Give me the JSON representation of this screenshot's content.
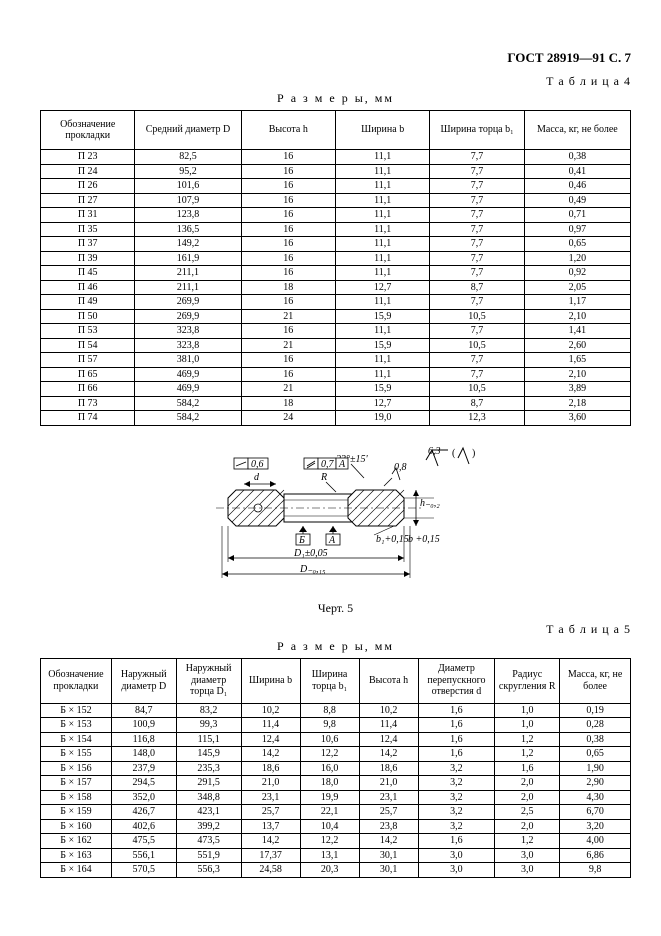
{
  "header": "ГОСТ 28919—91 С. 7",
  "table4": {
    "label": "Т а б л и ц а  4",
    "sizes_caption": "Р а з м е р ы,  мм",
    "columns": [
      "Обозначение прокладки",
      "Средний диаметр D",
      "Высота h",
      "Ширина b",
      "Ширина торца b₁",
      "Масса, кг, не более"
    ],
    "rows": [
      [
        "П 23",
        "82,5",
        "16",
        "11,1",
        "7,7",
        "0,38"
      ],
      [
        "П 24",
        "95,2",
        "16",
        "11,1",
        "7,7",
        "0,41"
      ],
      [
        "П 26",
        "101,6",
        "16",
        "11,1",
        "7,7",
        "0,46"
      ],
      [
        "П 27",
        "107,9",
        "16",
        "11,1",
        "7,7",
        "0,49"
      ],
      [
        "П 31",
        "123,8",
        "16",
        "11,1",
        "7,7",
        "0,71"
      ],
      [
        "П 35",
        "136,5",
        "16",
        "11,1",
        "7,7",
        "0,97"
      ],
      [
        "П 37",
        "149,2",
        "16",
        "11,1",
        "7,7",
        "0,65"
      ],
      [
        "П 39",
        "161,9",
        "16",
        "11,1",
        "7,7",
        "1,20"
      ],
      [
        "П 45",
        "211,1",
        "16",
        "11,1",
        "7,7",
        "0,92"
      ],
      [
        "П 46",
        "211,1",
        "18",
        "12,7",
        "8,7",
        "2,05"
      ],
      [
        "П 49",
        "269,9",
        "16",
        "11,1",
        "7,7",
        "1,17"
      ],
      [
        "П 50",
        "269,9",
        "21",
        "15,9",
        "10,5",
        "2,10"
      ],
      [
        "П 53",
        "323,8",
        "16",
        "11,1",
        "7,7",
        "1,41"
      ],
      [
        "П 54",
        "323,8",
        "21",
        "15,9",
        "10,5",
        "2,60"
      ],
      [
        "П 57",
        "381,0",
        "16",
        "11,1",
        "7,7",
        "1,65"
      ],
      [
        "П 65",
        "469,9",
        "16",
        "11,1",
        "7,7",
        "2,10"
      ],
      [
        "П 66",
        "469,9",
        "21",
        "15,9",
        "10,5",
        "3,89"
      ],
      [
        "П 73",
        "584,2",
        "18",
        "12,7",
        "8,7",
        "2,18"
      ],
      [
        "П 74",
        "584,2",
        "24",
        "19,0",
        "12,3",
        "3,60"
      ]
    ]
  },
  "diagram": {
    "angle": "23°±15'",
    "surface": "6,3",
    "tol_a": "0,8",
    "tol_flat": "0,6",
    "tol_par": "0,7",
    "datum_a": "А",
    "datum_b": "Б",
    "b_tol": "b₁+0,15",
    "b_dim": "b +0,15",
    "d1": "D₁±0,05",
    "d": "D₋₀,₁₅",
    "d_lbl": "d",
    "r_lbl": "R",
    "h_lbl": "h₋₀,₂"
  },
  "fig_label": "Черт. 5",
  "table5": {
    "label": "Т а б л и ц а  5",
    "sizes_caption": "Р а з м е р ы,  мм",
    "columns": [
      "Обозначение прокладки",
      "Наружный диаметр D",
      "Наружный диаметр торца D₁",
      "Ширина b",
      "Ширина торца b₁",
      "Высота h",
      "Диаметр перепускного отверстия d",
      "Радиус скругления R",
      "Масса, кг, не более"
    ],
    "rows": [
      [
        "Б × 152",
        "84,7",
        "83,2",
        "10,2",
        "8,8",
        "10,2",
        "1,6",
        "1,0",
        "0,19"
      ],
      [
        "Б × 153",
        "100,9",
        "99,3",
        "11,4",
        "9,8",
        "11,4",
        "1,6",
        "1,0",
        "0,28"
      ],
      [
        "Б × 154",
        "116,8",
        "115,1",
        "12,4",
        "10,6",
        "12,4",
        "1,6",
        "1,2",
        "0,38"
      ],
      [
        "Б × 155",
        "148,0",
        "145,9",
        "14,2",
        "12,2",
        "14,2",
        "1,6",
        "1,2",
        "0,65"
      ],
      [
        "Б × 156",
        "237,9",
        "235,3",
        "18,6",
        "16,0",
        "18,6",
        "3,2",
        "1,6",
        "1,90"
      ],
      [
        "Б × 157",
        "294,5",
        "291,5",
        "21,0",
        "18,0",
        "21,0",
        "3,2",
        "2,0",
        "2,90"
      ],
      [
        "Б × 158",
        "352,0",
        "348,8",
        "23,1",
        "19,9",
        "23,1",
        "3,2",
        "2,0",
        "4,30"
      ],
      [
        "Б × 159",
        "426,7",
        "423,1",
        "25,7",
        "22,1",
        "25,7",
        "3,2",
        "2,5",
        "6,70"
      ],
      [
        "Б × 160",
        "402,6",
        "399,2",
        "13,7",
        "10,4",
        "23,8",
        "3,2",
        "2,0",
        "3,20"
      ],
      [
        "Б × 162",
        "475,5",
        "473,5",
        "14,2",
        "12,2",
        "14,2",
        "1,6",
        "1,2",
        "4,00"
      ],
      [
        "Б × 163",
        "556,1",
        "551,9",
        "17,37",
        "13,1",
        "30,1",
        "3,0",
        "3,0",
        "6,86"
      ],
      [
        "Б × 164",
        "570,5",
        "556,3",
        "24,58",
        "20,3",
        "30,1",
        "3,0",
        "3,0",
        "9,8"
      ]
    ]
  }
}
